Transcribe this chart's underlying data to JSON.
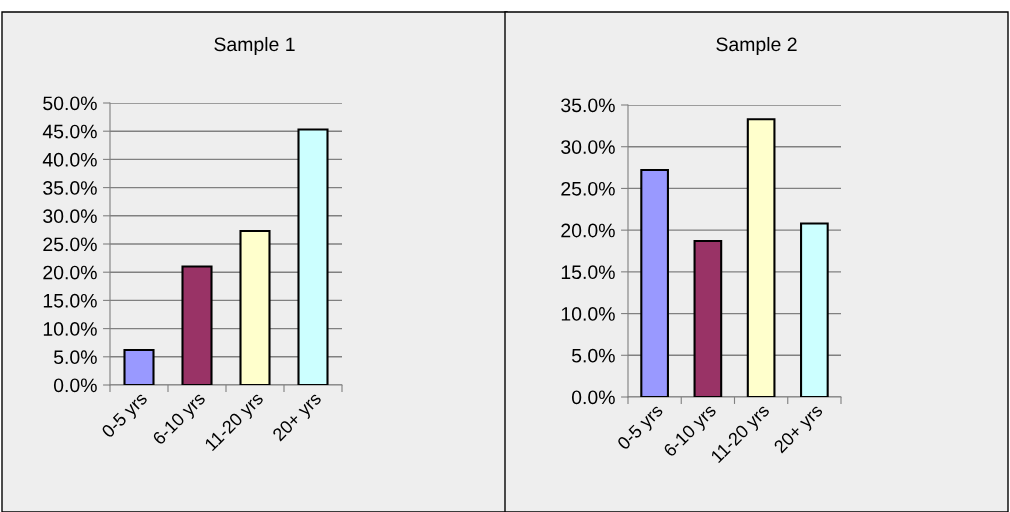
{
  "chart_data": [
    {
      "type": "bar",
      "title": "Sample 1",
      "categories": [
        "0-5 yrs",
        "6-10 yrs",
        "11-20 yrs",
        "20+ yrs"
      ],
      "values": [
        6.2,
        21.0,
        27.3,
        45.3
      ],
      "colors": [
        "#9999ff",
        "#993366",
        "#ffffcc",
        "#ccffff"
      ],
      "ylim": [
        0,
        50
      ],
      "yticks": [
        {
          "value": 0,
          "label": "0.0%"
        },
        {
          "value": 5,
          "label": "5.0%"
        },
        {
          "value": 10,
          "label": "10.0%"
        },
        {
          "value": 15,
          "label": "15.0%"
        },
        {
          "value": 20,
          "label": "20.0%"
        },
        {
          "value": 25,
          "label": "25.0%"
        },
        {
          "value": 30,
          "label": "30.0%"
        },
        {
          "value": 35,
          "label": "35.0%"
        },
        {
          "value": 40,
          "label": "40.0%"
        },
        {
          "value": 45,
          "label": "45.0%"
        },
        {
          "value": 50,
          "label": "50.0%"
        }
      ],
      "grid": "y",
      "legend": false
    },
    {
      "type": "bar",
      "title": "Sample 2",
      "categories": [
        "0-5 yrs",
        "6-10 yrs",
        "11-20 yrs",
        "20+ yrs"
      ],
      "values": [
        27.2,
        18.7,
        33.3,
        20.8
      ],
      "colors": [
        "#9999ff",
        "#993366",
        "#ffffcc",
        "#ccffff"
      ],
      "ylim": [
        0,
        35
      ],
      "yticks": [
        {
          "value": 0,
          "label": "0.0%"
        },
        {
          "value": 5,
          "label": "5.0%"
        },
        {
          "value": 10,
          "label": "10.0%"
        },
        {
          "value": 15,
          "label": "15.0%"
        },
        {
          "value": 20,
          "label": "20.0%"
        },
        {
          "value": 25,
          "label": "25.0%"
        },
        {
          "value": 30,
          "label": "30.0%"
        },
        {
          "value": 35,
          "label": "35.0%"
        }
      ],
      "grid": "y",
      "legend": false
    }
  ]
}
